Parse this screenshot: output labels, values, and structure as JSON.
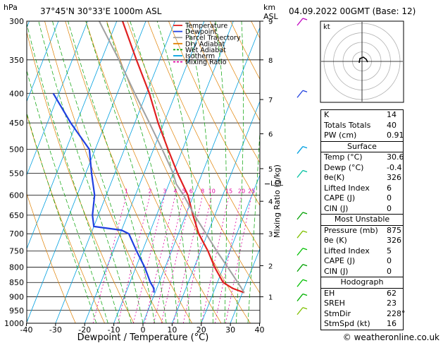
{
  "header": {
    "location": "37°45'N  30°33'E  1000m  ASL",
    "hpa_unit": "hPa",
    "km_unit": "km",
    "asl_unit": "ASL",
    "date": "04.09.2022  00GMT  (Base: 12)"
  },
  "footer": {
    "credit": "© weatheronline.co.uk"
  },
  "legend": [
    {
      "label": "Temperature",
      "color": "#e02020"
    },
    {
      "label": "Dewpoint",
      "color": "#2040e0"
    },
    {
      "label": "Parcel Trajectory",
      "color": "#a0a0a0"
    },
    {
      "label": "Dry Adiabat",
      "color": "#e08000"
    },
    {
      "label": "Wet Adiabat",
      "color": "#00a000"
    },
    {
      "label": "Isotherm",
      "color": "#00a0e0"
    },
    {
      "label": "Mixing Ratio",
      "color": "#e000a0"
    }
  ],
  "axes": {
    "xlabel": "Dewpoint / Temperature (°C)",
    "mixing_label": "Mixing Ratio (g/kg)",
    "lcl_label": "LCL"
  },
  "hodograph": {
    "label": "kt"
  },
  "indices": {
    "top": [
      {
        "k": "K",
        "v": "14"
      },
      {
        "k": "Totals Totals",
        "v": "40"
      },
      {
        "k": "PW (cm)",
        "v": "0.91"
      }
    ],
    "surface_title": "Surface",
    "surface": [
      {
        "k": "Temp (°C)",
        "v": "30.6"
      },
      {
        "k": "Dewp (°C)",
        "v": "-0.4"
      },
      {
        "k": "θe(K)",
        "v": "326"
      },
      {
        "k": "Lifted Index",
        "v": "6"
      },
      {
        "k": "CAPE (J)",
        "v": "0"
      },
      {
        "k": "CIN (J)",
        "v": "0"
      }
    ],
    "mu_title": "Most Unstable",
    "mu": [
      {
        "k": "Pressure (mb)",
        "v": "875"
      },
      {
        "k": "θe (K)",
        "v": "326"
      },
      {
        "k": "Lifted Index",
        "v": "5"
      },
      {
        "k": "CAPE (J)",
        "v": "0"
      },
      {
        "k": "CIN (J)",
        "v": "0"
      }
    ],
    "hodo_title": "Hodograph",
    "hodo": [
      {
        "k": "EH",
        "v": "62"
      },
      {
        "k": "SREH",
        "v": "23"
      },
      {
        "k": "StmDir",
        "v": "228°"
      },
      {
        "k": "StmSpd (kt)",
        "v": "16"
      }
    ]
  },
  "chart_data": {
    "type": "line",
    "title": "37°45'N  30°33'E  1000m  ASL",
    "xlabel": "Dewpoint / Temperature (°C)",
    "ylabel": "hPa",
    "xlim": [
      -40,
      40
    ],
    "ylim": [
      1000,
      300
    ],
    "y_scale": "log",
    "x_ticks": [
      -40,
      -30,
      -20,
      -10,
      0,
      10,
      20,
      30,
      40
    ],
    "pressure_ticks": [
      300,
      350,
      400,
      450,
      500,
      550,
      600,
      650,
      700,
      750,
      800,
      850,
      900,
      950,
      1000
    ],
    "km_ticks": [
      {
        "km": "9",
        "p": 300
      },
      {
        "km": "8",
        "p": 350
      },
      {
        "km": "7",
        "p": 410
      },
      {
        "km": "6",
        "p": 470
      },
      {
        "km": "5",
        "p": 540
      },
      {
        "km": "4",
        "p": 615
      },
      {
        "km": "3",
        "p": 700
      },
      {
        "km": "2",
        "p": 795
      },
      {
        "km": "1",
        "p": 900
      }
    ],
    "mixing_ratio_labels": [
      "1",
      "2",
      "3",
      "4",
      "5",
      "6",
      "8",
      "10",
      "15",
      "20",
      "25"
    ],
    "lcl_pressure": 574,
    "series": [
      {
        "name": "Temperature",
        "color": "#e02020",
        "p": [
          885,
          870,
          850,
          800,
          750,
          700,
          650,
          600,
          550,
          500,
          450,
          400,
          350,
          300
        ],
        "t": [
          30.6,
          26,
          22,
          17,
          12.5,
          7,
          2.5,
          -2,
          -8.5,
          -15,
          -22,
          -29,
          -38,
          -48
        ]
      },
      {
        "name": "Dewpoint",
        "color": "#2040e0",
        "p": [
          885,
          870,
          850,
          800,
          750,
          700,
          690,
          680,
          650,
          600,
          550,
          500,
          450,
          400
        ],
        "t": [
          -0.4,
          -1,
          -3,
          -7,
          -12,
          -17,
          -20,
          -30,
          -32,
          -34,
          -38,
          -42,
          -52,
          -62
        ]
      },
      {
        "name": "Parcel Trajectory",
        "color": "#a0a0a0",
        "p": [
          885,
          850,
          800,
          750,
          700,
          650,
          600,
          574,
          550,
          500,
          450,
          400,
          350,
          300
        ],
        "t": [
          30.6,
          27,
          21.5,
          15.5,
          9.5,
          3,
          -3.5,
          -7.5,
          -10,
          -17,
          -25,
          -34,
          -44,
          -56
        ]
      }
    ]
  }
}
